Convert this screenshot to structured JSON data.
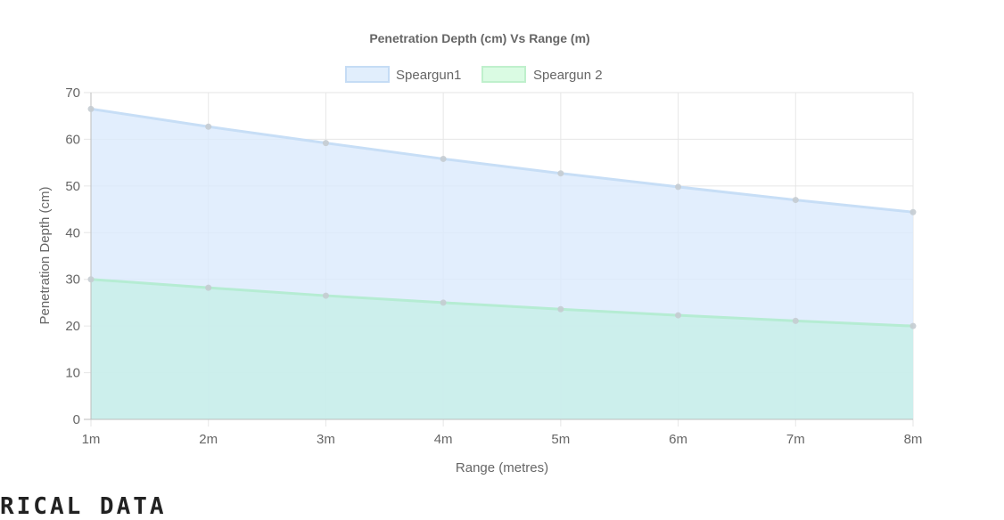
{
  "chart_data": {
    "type": "area",
    "title": "Penetration Depth (cm) Vs Range (m)",
    "xlabel": "Range (metres)",
    "ylabel": "Penetration Depth (cm)",
    "categories": [
      "1m",
      "2m",
      "3m",
      "4m",
      "5m",
      "6m",
      "7m",
      "8m"
    ],
    "ylim": [
      0,
      70
    ],
    "yticks": [
      0,
      10,
      20,
      30,
      40,
      50,
      60,
      70
    ],
    "grid": true,
    "legend_position": "top",
    "series": [
      {
        "name": "Speargun1",
        "values": [
          66.5,
          62.7,
          59.2,
          55.8,
          52.7,
          49.8,
          47.0,
          44.4
        ],
        "fill": "#dbeafc",
        "line": "#c7def6",
        "legend_fill": "#e1eefc",
        "legend_border": "#c5dcf5"
      },
      {
        "name": "Speargun 2",
        "values": [
          30.0,
          28.2,
          26.5,
          25.0,
          23.6,
          22.3,
          21.1,
          20.0
        ],
        "fill": "#c8efe9",
        "line": "#b5ecd3",
        "legend_fill": "#dafbe3",
        "legend_border": "#bff0cc"
      }
    ],
    "point_color": "#c5ccd2"
  },
  "section": {
    "heading": "RICAL DATA"
  }
}
